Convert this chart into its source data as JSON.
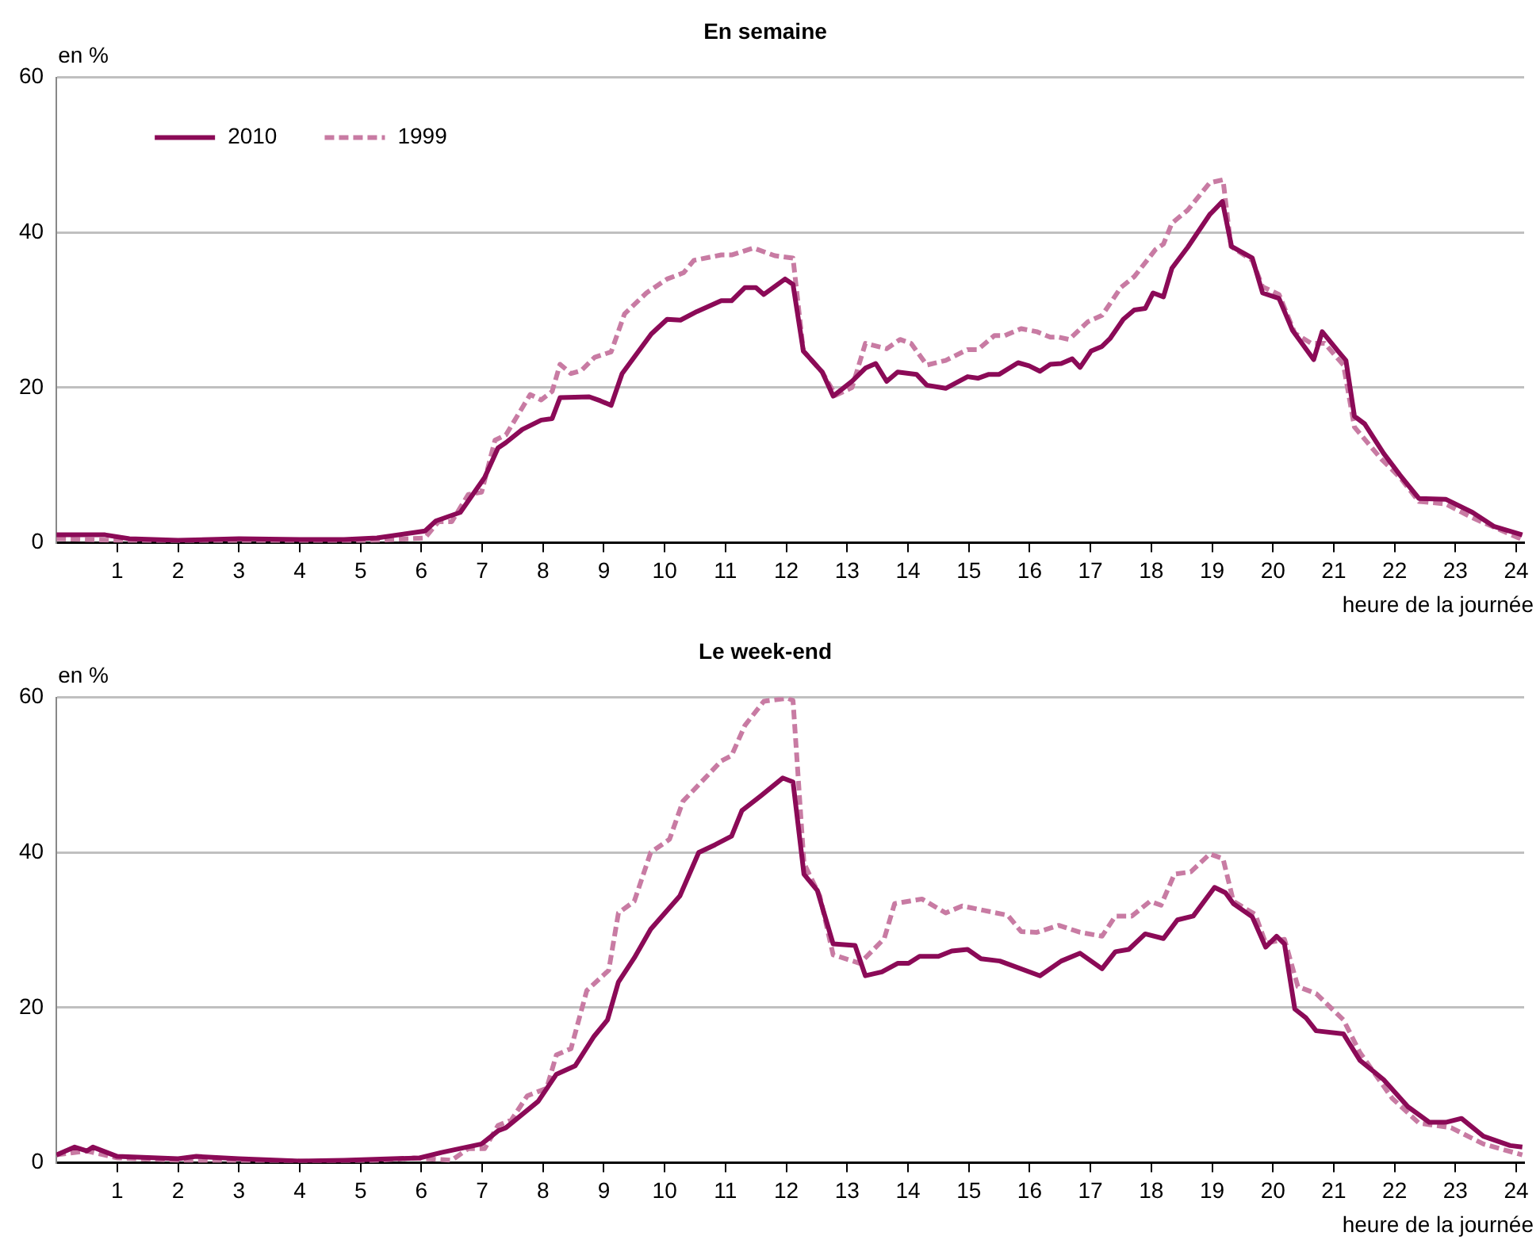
{
  "chart_data": [
    {
      "type": "line",
      "title": "En semaine",
      "xlabel": "heure de la journée",
      "ylabel": "en %",
      "xlim": [
        0,
        24.13
      ],
      "ylim": [
        0,
        60
      ],
      "xticks": [
        1,
        2,
        3,
        4,
        5,
        6,
        7,
        8,
        9,
        10,
        11,
        12,
        13,
        14,
        15,
        16,
        17,
        18,
        19,
        20,
        21,
        22,
        23,
        24
      ],
      "yticks": [
        0,
        20,
        40,
        60
      ],
      "grid": "y",
      "legend": "top left",
      "marker": "none",
      "series": [
        {
          "name": "2010",
          "color": "#8b0a57",
          "line_style": "solid",
          "x": [
            0,
            0.5,
            0.8,
            1.2,
            2,
            3,
            4,
            4.73,
            5.27,
            6.06,
            6.24,
            6.64,
            7.04,
            7.26,
            7.39,
            7.66,
            7.97,
            8.15,
            8.28,
            8.76,
            8.94,
            9.12,
            9.3,
            9.78,
            10.04,
            10.26,
            10.53,
            10.93,
            11.1,
            11.32,
            11.5,
            11.63,
            11.98,
            12.11,
            12.28,
            12.59,
            12.77,
            13.08,
            13.3,
            13.47,
            13.65,
            13.83,
            14.14,
            14.31,
            14.62,
            14.98,
            15.15,
            15.33,
            15.5,
            15.81,
            15.99,
            16.17,
            16.34,
            16.52,
            16.7,
            16.83,
            17.01,
            17.19,
            17.32,
            17.54,
            17.72,
            17.9,
            18.03,
            18.2,
            18.34,
            18.6,
            18.96,
            19.17,
            19.32,
            19.66,
            19.83,
            20.1,
            20.32,
            20.67,
            20.81,
            21.07,
            21.2,
            21.34,
            21.51,
            21.82,
            22.09,
            22.4,
            22.84,
            23.28,
            23.63,
            24.1
          ],
          "values": [
            1,
            1,
            1,
            0.5,
            0.3,
            0.5,
            0.4,
            0.4,
            0.6,
            1.5,
            2.8,
            3.9,
            8.4,
            12.2,
            12.9,
            14.6,
            15.8,
            16,
            18.7,
            18.8,
            18.3,
            17.7,
            21.8,
            26.9,
            28.8,
            28.7,
            29.8,
            31.2,
            31.2,
            32.9,
            32.9,
            32,
            34,
            33.3,
            24.7,
            22,
            18.9,
            20.8,
            22.5,
            23.1,
            20.8,
            22,
            21.7,
            20.3,
            19.9,
            21.4,
            21.2,
            21.7,
            21.7,
            23.2,
            22.8,
            22.1,
            23,
            23.1,
            23.7,
            22.6,
            24.7,
            25.3,
            26.3,
            28.8,
            30,
            30.2,
            32.2,
            31.7,
            35.4,
            38.1,
            42.3,
            44,
            38.2,
            36.7,
            32.2,
            31.5,
            27.4,
            23.6,
            27.2,
            24.7,
            23.5,
            16.3,
            15.3,
            11.5,
            8.7,
            5.7,
            5.6,
            3.9,
            2.1,
            1
          ]
        },
        {
          "name": "1999",
          "color": "#c87ba3",
          "line_style": "dashed",
          "x": [
            0,
            1,
            2,
            3,
            4,
            4.73,
            6.06,
            6.28,
            6.5,
            6.77,
            6.99,
            7.21,
            7.39,
            7.79,
            7.97,
            8.15,
            8.28,
            8.46,
            8.63,
            8.85,
            9.12,
            9.34,
            9.7,
            10.04,
            10.31,
            10.48,
            10.93,
            11.1,
            11.46,
            11.81,
            12.11,
            12.28,
            12.59,
            12.81,
            13.08,
            13.3,
            13.65,
            13.87,
            14.05,
            14.31,
            14.62,
            14.98,
            15.15,
            15.42,
            15.59,
            15.86,
            16.12,
            16.34,
            16.48,
            16.65,
            16.96,
            17.19,
            17.5,
            17.72,
            18.07,
            18.2,
            18.34,
            18.6,
            18.96,
            19.18,
            19.31,
            19.66,
            19.83,
            20.1,
            20.36,
            20.63,
            20.85,
            21.16,
            21.34,
            21.78,
            22.09,
            22.4,
            22.84,
            23.28,
            23.63,
            24.1
          ],
          "values": [
            0.5,
            0.3,
            0.2,
            0.2,
            0.2,
            0.1,
            0.6,
            2.7,
            2.7,
            6.2,
            6.5,
            13.2,
            13.9,
            19.1,
            18.4,
            19.5,
            23,
            21.8,
            22.2,
            23.9,
            24.6,
            29.5,
            32.2,
            34,
            34.8,
            36.4,
            37.1,
            37.1,
            38,
            37,
            36.7,
            24.7,
            22,
            19,
            20,
            25.7,
            25,
            26.2,
            25.7,
            22.9,
            23.5,
            24.9,
            24.9,
            26.7,
            26.7,
            27.6,
            27.2,
            26.5,
            26.5,
            26.2,
            28.5,
            29.3,
            32.9,
            34.3,
            37.8,
            38.5,
            41.2,
            42.9,
            46.4,
            46.8,
            38.2,
            36.4,
            33,
            32,
            27,
            25.7,
            25.7,
            22.9,
            14.9,
            10.8,
            8.4,
            5.3,
            5,
            3.2,
            2,
            0.4
          ]
        }
      ]
    },
    {
      "type": "line",
      "title": "Le week-end",
      "xlabel": "heure de la journée",
      "ylabel": "en %",
      "xlim": [
        0,
        24.13
      ],
      "ylim": [
        0,
        60
      ],
      "xticks": [
        1,
        2,
        3,
        4,
        5,
        6,
        7,
        8,
        9,
        10,
        11,
        12,
        13,
        14,
        15,
        16,
        17,
        18,
        19,
        20,
        21,
        22,
        23,
        24
      ],
      "yticks": [
        0,
        20,
        40,
        60
      ],
      "grid": "y",
      "marker": "none",
      "series": [
        {
          "name": "2010",
          "color": "#8b0a57",
          "line_style": "solid",
          "x": [
            0,
            0.3,
            0.5,
            0.6,
            1,
            2,
            2.3,
            3,
            4,
            4.73,
            5.97,
            6.33,
            6.99,
            7.26,
            7.39,
            7.92,
            8.22,
            8.53,
            8.84,
            9.06,
            9.24,
            9.5,
            9.77,
            10.25,
            10.56,
            10.83,
            11.1,
            11.27,
            11.58,
            11.94,
            12.11,
            12.29,
            12.51,
            12.77,
            13.13,
            13.3,
            13.57,
            13.83,
            14.01,
            14.19,
            14.5,
            14.72,
            14.98,
            15.2,
            15.51,
            16.17,
            16.52,
            16.83,
            17.19,
            17.41,
            17.63,
            17.9,
            18.2,
            18.43,
            18.69,
            19.04,
            19.22,
            19.35,
            19.66,
            19.88,
            20.06,
            20.19,
            20.36,
            20.54,
            20.71,
            21.16,
            21.43,
            21.82,
            22.22,
            22.57,
            22.84,
            23.1,
            23.46,
            23.9,
            24.1
          ],
          "values": [
            1,
            2,
            1.5,
            2,
            0.8,
            0.5,
            0.8,
            0.5,
            0.2,
            0.3,
            0.6,
            1.3,
            2.4,
            4.1,
            4.5,
            7.9,
            11.4,
            12.5,
            16.3,
            18.4,
            23.3,
            26.4,
            30.1,
            34.4,
            40,
            41,
            42.1,
            45.4,
            47.3,
            49.6,
            49.1,
            37.2,
            35.1,
            28.2,
            28,
            24.1,
            24.6,
            25.7,
            25.7,
            26.6,
            26.6,
            27.3,
            27.5,
            26.3,
            26,
            24.1,
            26,
            27,
            25,
            27.2,
            27.5,
            29.5,
            28.9,
            31.3,
            31.8,
            35.5,
            34.8,
            33.4,
            31.7,
            27.8,
            29.2,
            28.2,
            19.8,
            18.7,
            17,
            16.6,
            13.2,
            10.7,
            7.2,
            5.2,
            5.2,
            5.7,
            3.4,
            2.2,
            2
          ]
        },
        {
          "name": "1999",
          "color": "#c87ba3",
          "line_style": "dashed",
          "x": [
            0,
            0.5,
            1,
            2,
            4,
            4.73,
            5.88,
            6.5,
            6.77,
            7.04,
            7.26,
            7.48,
            7.74,
            8.06,
            8.22,
            8.46,
            8.72,
            9.08,
            9.24,
            9.5,
            9.77,
            10.08,
            10.3,
            10.52,
            10.93,
            11.1,
            11.32,
            11.63,
            12.02,
            12.11,
            12.29,
            12.55,
            12.77,
            13.21,
            13.61,
            13.78,
            14.23,
            14.62,
            14.89,
            15.64,
            15.86,
            16.12,
            16.48,
            16.83,
            17.19,
            17.41,
            17.68,
            17.98,
            18.16,
            18.38,
            18.65,
            18.96,
            19.18,
            19.35,
            19.71,
            19.88,
            20.19,
            20.41,
            20.71,
            21.16,
            21.43,
            21.96,
            22.4,
            22.93,
            23.46,
            24.1
          ],
          "values": [
            1,
            1.5,
            0.6,
            0.3,
            0.2,
            0,
            0.6,
            0.3,
            1.8,
            1.8,
            4.8,
            5.5,
            8.6,
            9.6,
            13.9,
            14.7,
            22.2,
            24.8,
            32.2,
            33.7,
            40,
            41.7,
            46.6,
            48.4,
            51.8,
            52.5,
            56.4,
            59.5,
            59.9,
            59.6,
            38.6,
            34.4,
            26.8,
            25.7,
            28.9,
            33.4,
            34,
            32.2,
            33.1,
            31.9,
            29.8,
            29.7,
            30.6,
            29.7,
            29.2,
            31.8,
            31.8,
            33.7,
            33.2,
            37.2,
            37.5,
            39.8,
            39.2,
            33.7,
            32,
            28.3,
            28.8,
            22.7,
            21.8,
            18.4,
            14.2,
            8.3,
            5.1,
            4.5,
            2.4,
            1
          ]
        }
      ]
    }
  ]
}
